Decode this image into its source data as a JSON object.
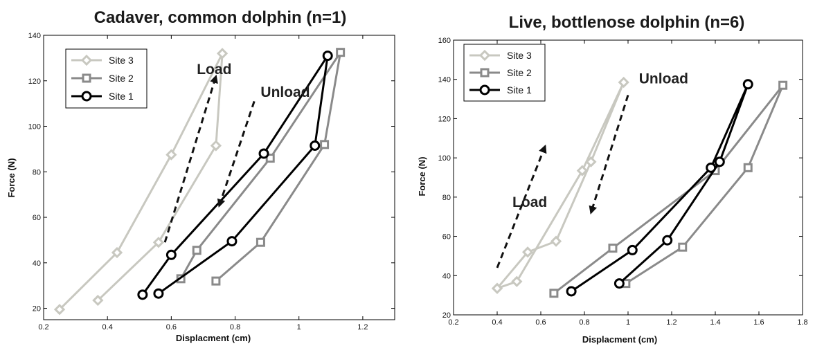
{
  "chart_data": [
    {
      "type": "line",
      "title": "Cadaver, common dolphin (n=1)",
      "xlabel": "Displacment (cm)",
      "ylabel": "Force (N)",
      "xlim": [
        0.2,
        1.3
      ],
      "ylim": [
        15,
        140
      ],
      "xticks": [
        0.2,
        0.4,
        0.6,
        0.8,
        1,
        1.2
      ],
      "xtick_labels": [
        "0.2",
        "0.4",
        "0.6",
        "0.8",
        "1",
        "1.2"
      ],
      "yticks": [
        20,
        40,
        60,
        80,
        100,
        120,
        140
      ],
      "ytick_labels": [
        "20",
        "40",
        "60",
        "80",
        "100",
        "120",
        "140"
      ],
      "grid": false,
      "legend_position": "top-left",
      "series": [
        {
          "name": "Site 3",
          "color": "#c8c8c0",
          "marker": "diamond",
          "x": [
            0.25,
            0.43,
            0.6,
            0.76,
            0.74,
            0.56,
            0.37
          ],
          "y": [
            19.5,
            44.5,
            87.5,
            132,
            91.5,
            49,
            23.5
          ]
        },
        {
          "name": "Site 2",
          "color": "#8a8a8a",
          "marker": "square",
          "x": [
            0.63,
            0.68,
            0.91,
            1.13,
            1.08,
            0.88,
            0.74
          ],
          "y": [
            33,
            45.5,
            86,
            132.5,
            92,
            49,
            32
          ]
        },
        {
          "name": "Site 1",
          "color": "#000000",
          "marker": "circle",
          "x": [
            0.51,
            0.6,
            0.89,
            1.09,
            1.05,
            0.79,
            0.56
          ],
          "y": [
            26,
            43.5,
            88,
            131,
            91.5,
            49.5,
            26.5
          ]
        }
      ],
      "annotations": [
        {
          "text": "Load",
          "x": 0.68,
          "y": 123,
          "arrow": {
            "from": [
              0.58,
              49
            ],
            "to": [
              0.74,
              122
            ]
          }
        },
        {
          "text": "Unload",
          "x": 0.88,
          "y": 113,
          "arrow": {
            "from": [
              0.86,
              111
            ],
            "to": [
              0.75,
              65
            ]
          }
        }
      ]
    },
    {
      "type": "line",
      "title": "Live, bottlenose dolphin (n=6)",
      "xlabel": "Displacment (cm)",
      "ylabel": "Force (N)",
      "xlim": [
        0.2,
        1.8
      ],
      "ylim": [
        20,
        160
      ],
      "xticks": [
        0.2,
        0.4,
        0.6,
        0.8,
        1,
        1.2,
        1.4,
        1.6,
        1.8
      ],
      "xtick_labels": [
        "0.2",
        "0.4",
        "0.6",
        "0.8",
        "1",
        "1.2",
        "1.4",
        "1.6",
        "1.8"
      ],
      "yticks": [
        20,
        40,
        60,
        80,
        100,
        120,
        140,
        160
      ],
      "ytick_labels": [
        "20",
        "40",
        "60",
        "80",
        "100",
        "120",
        "140",
        "160"
      ],
      "grid": false,
      "legend_position": "top-left",
      "series": [
        {
          "name": "Site 3",
          "color": "#c8c8c0",
          "marker": "diamond",
          "x": [
            0.4,
            0.54,
            0.67,
            0.83,
            0.98,
            0.79,
            0.49,
            0.4
          ],
          "y": [
            33.5,
            52,
            57.5,
            98,
            138.5,
            93.5,
            37,
            33.5
          ]
        },
        {
          "name": "Site 2",
          "color": "#8a8a8a",
          "marker": "square",
          "x": [
            0.66,
            0.93,
            1.4,
            1.71,
            1.55,
            1.25,
            0.99
          ],
          "y": [
            31,
            54,
            93.5,
            137,
            95,
            54.5,
            36
          ]
        },
        {
          "name": "Site 1",
          "color": "#000000",
          "marker": "circle",
          "x": [
            0.74,
            1.02,
            1.38,
            1.55,
            1.42,
            1.18,
            0.96
          ],
          "y": [
            32,
            53,
            95,
            137.5,
            98,
            58,
            36
          ]
        }
      ],
      "annotations": [
        {
          "text": "Load",
          "x": 0.47,
          "y": 75,
          "arrow": {
            "from": [
              0.4,
              44
            ],
            "to": [
              0.62,
              106
            ]
          }
        },
        {
          "text": "Unload",
          "x": 1.05,
          "y": 138,
          "arrow": {
            "from": [
              1.0,
              132
            ],
            "to": [
              0.83,
              72
            ]
          }
        }
      ]
    }
  ]
}
